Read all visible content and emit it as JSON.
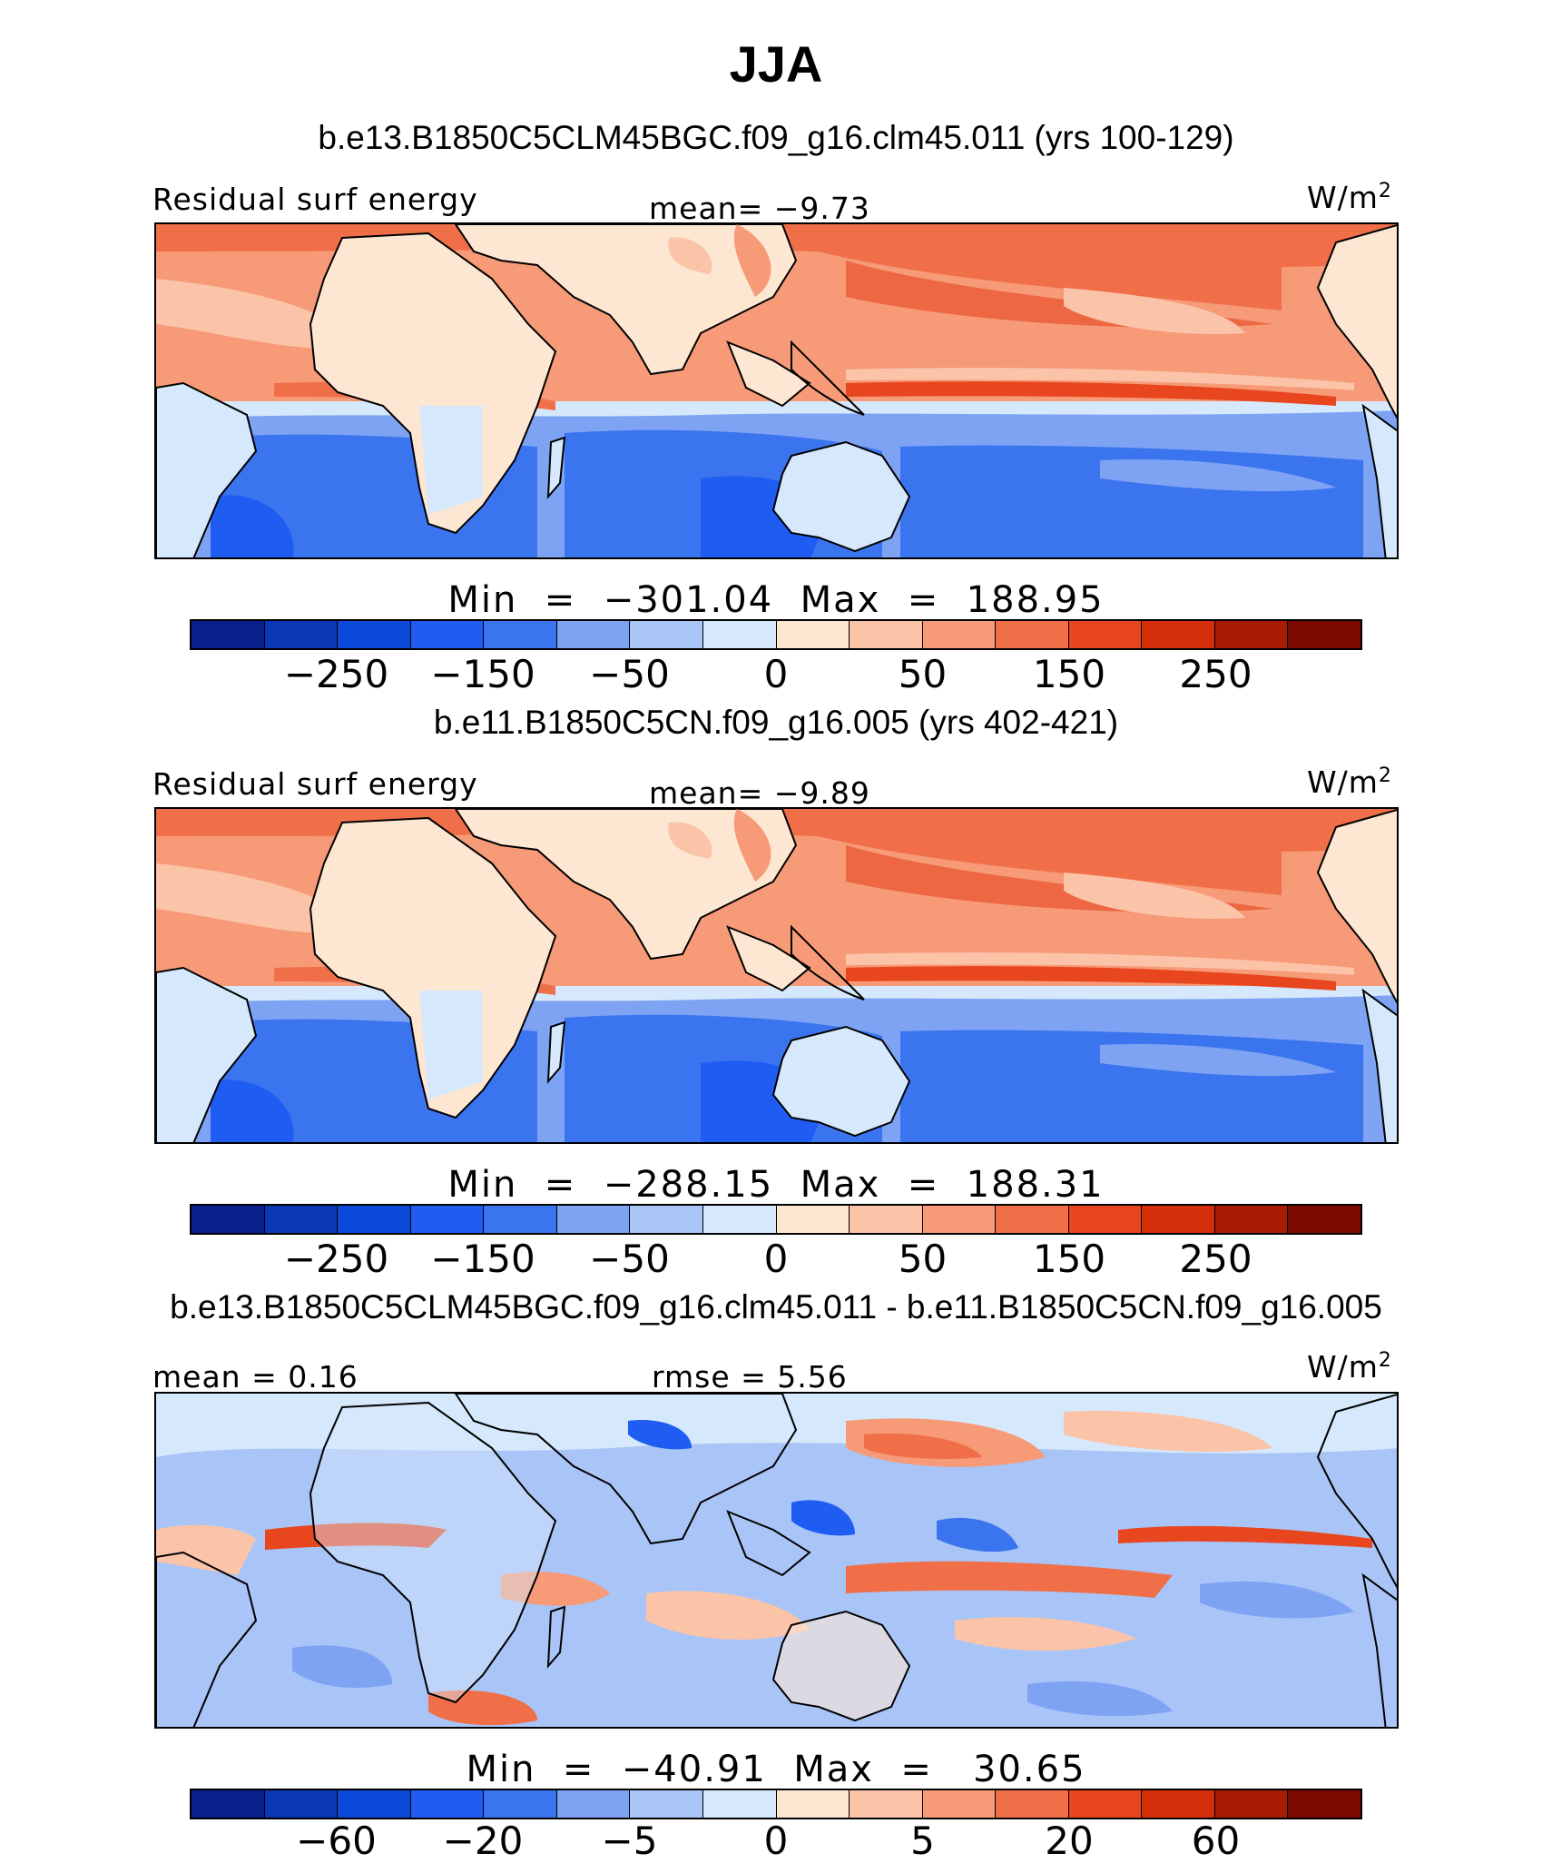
{
  "title": "JJA",
  "colors": [
    "#0a1f8c",
    "#0a38b4",
    "#0b49d8",
    "#1f5cf2",
    "#3b74ef",
    "#7da3f2",
    "#a9c4f6",
    "#d6e8fb",
    "#fde7d3",
    "#fbc4a8",
    "#f69a78",
    "#f06f48",
    "#e8461f",
    "#d42e0a",
    "#a61a06",
    "#7a0a00"
  ],
  "panels": [
    {
      "case": "b.e13.B1850C5CLM45BGC.f09_g16.clm45.011 (yrs 100-129)",
      "left_label": "Residual surf energy",
      "center_label": "mean=   −9.73",
      "unit": "W/m",
      "unit_sup": "2",
      "minmax": "Min  =  −301.04  Max  =  188.95",
      "ticks": [
        "−250",
        "−150",
        "−50",
        "0",
        "50",
        "150",
        "250"
      ]
    },
    {
      "case": "b.e11.B1850C5CN.f09_g16.005 (yrs 402-421)",
      "left_label": "Residual surf energy",
      "center_label": "mean=   −9.89",
      "unit": "W/m",
      "unit_sup": "2",
      "minmax": "Min  =  −288.15  Max  =  188.31",
      "ticks": [
        "−250",
        "−150",
        "−50",
        "0",
        "50",
        "150",
        "250"
      ]
    },
    {
      "case": "b.e13.B1850C5CLM45BGC.f09_g16.clm45.011 - b.e11.B1850C5CN.f09_g16.005",
      "left_label": "mean =    0.16",
      "center_label": "rmse =    5.56",
      "unit": "W/m",
      "unit_sup": "2",
      "minmax": "Min  =  −40.91  Max  =   30.65",
      "ticks": [
        "−60",
        "−20",
        "−5",
        "0",
        "5",
        "20",
        "60"
      ]
    }
  ]
}
